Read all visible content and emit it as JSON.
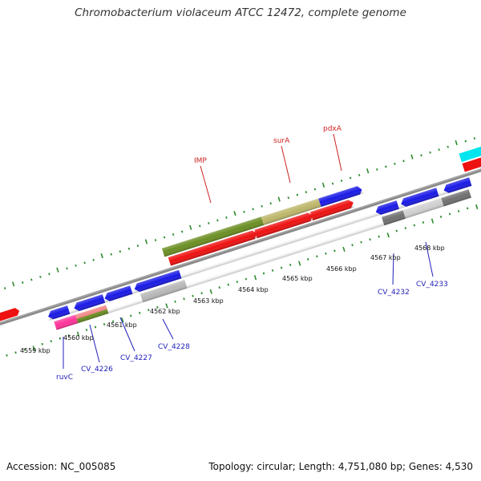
{
  "title": "Chromobacterium violaceum ATCC 12472, complete genome",
  "footer": {
    "accession": "Accession: NC_005085",
    "summary": "Topology: circular; Length: 4,751,080 bp; Genes: 4,530"
  },
  "colors": {
    "backbone": "#8a8a8a",
    "ruler_dot": "#2e8b2e",
    "label_red": "#cc2222",
    "label_blue": "#2222bb",
    "gene_red": "#ee1111",
    "gene_blue": "#1a1ae6",
    "gene_olive": "#6b8e23",
    "gene_khaki": "#bdb76b",
    "gene_grey": "#b8b8b8",
    "gene_darkgrey": "#707070",
    "gene_pink": "#ff3399",
    "gene_salmon": "#f08080",
    "gene_cyan": "#00e5ee"
  },
  "ruler": {
    "unit": "kbp",
    "ticks": [
      {
        "label": "4559 kbp"
      },
      {
        "label": "4560 kbp"
      },
      {
        "label": "4561 kbp"
      },
      {
        "label": "4562 kbp"
      },
      {
        "label": "4563 kbp"
      },
      {
        "label": "4564 kbp"
      },
      {
        "label": "4565 kbp"
      },
      {
        "label": "4566 kbp"
      },
      {
        "label": "4567 kbp"
      },
      {
        "label": "4568 kbp"
      }
    ]
  },
  "gene_labels": {
    "top": [
      {
        "name": "IMP"
      },
      {
        "name": "surA"
      },
      {
        "name": "pdxA"
      }
    ],
    "bottom": [
      {
        "name": "ruvC"
      },
      {
        "name": "CV_4226"
      },
      {
        "name": "CV_4227"
      },
      {
        "name": "CV_4228"
      },
      {
        "name": "CV_4232"
      },
      {
        "name": "CV_4233"
      }
    ]
  }
}
